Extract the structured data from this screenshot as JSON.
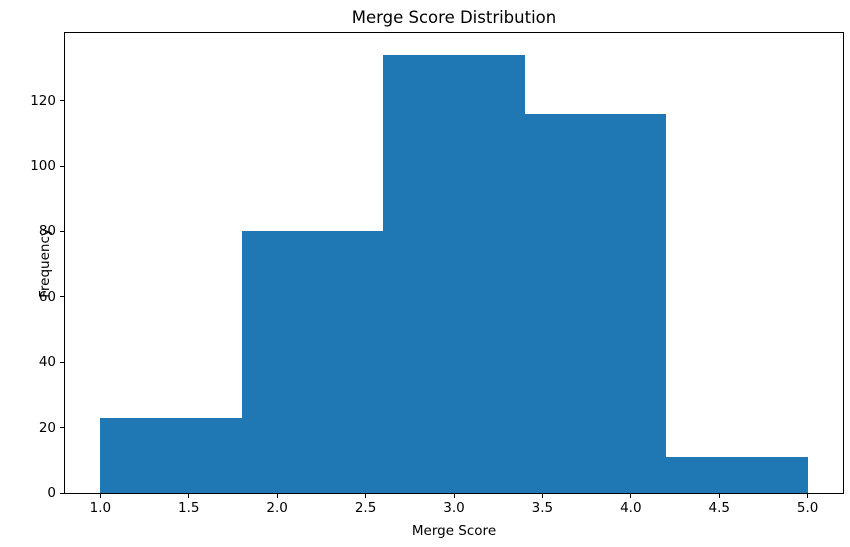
{
  "chart_data": {
    "type": "bar",
    "subtype": "histogram",
    "title": "Merge Score Distribution",
    "xlabel": "Merge Score",
    "ylabel": "Frequency",
    "bin_edges": [
      1.0,
      1.8,
      2.6,
      3.4,
      4.2,
      5.0
    ],
    "values": [
      23,
      80,
      134,
      116,
      11
    ],
    "xlim": [
      0.8,
      5.2
    ],
    "ylim": [
      0,
      140.7
    ],
    "x_ticks": [
      1.0,
      1.5,
      2.0,
      2.5,
      3.0,
      3.5,
      4.0,
      4.5,
      5.0
    ],
    "x_tick_labels": [
      "1.0",
      "1.5",
      "2.0",
      "2.5",
      "3.0",
      "3.5",
      "4.0",
      "4.5",
      "5.0"
    ],
    "y_ticks": [
      0,
      20,
      40,
      60,
      80,
      100,
      120
    ],
    "y_tick_labels": [
      "0",
      "20",
      "40",
      "60",
      "80",
      "100",
      "120"
    ],
    "bar_color": "#1f77b4",
    "background_color": "#ffffff",
    "spine_color": "#000000",
    "grid": false,
    "legend": null
  }
}
